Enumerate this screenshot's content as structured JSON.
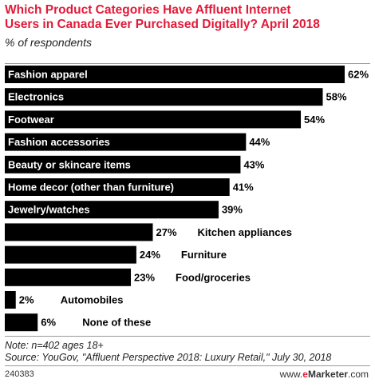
{
  "header": {
    "title": "Which Product Categories Have Affluent Internet\nUsers in Canada Ever Purchased Digitally? April 2018",
    "subtitle": "% of respondents"
  },
  "chart_data": {
    "type": "bar",
    "orientation": "horizontal",
    "title": "Which Product Categories Have Affluent Internet Users in Canada Ever Purchased Digitally? April 2018",
    "subtitle": "% of respondents",
    "categories": [
      "Fashion apparel",
      "Electronics",
      "Footwear",
      "Fashion accessories",
      "Beauty or skincare items",
      "Home decor (other than furniture)",
      "Jewelry/watches",
      "Kitchen appliances",
      "Furniture",
      "Food/groceries",
      "Automobiles",
      "None of these"
    ],
    "values": [
      62,
      58,
      54,
      44,
      43,
      41,
      39,
      27,
      24,
      23,
      2,
      6
    ],
    "value_labels": [
      "62%",
      "58%",
      "54%",
      "44%",
      "43%",
      "41%",
      "39%",
      "27%",
      "24%",
      "23%",
      "2%",
      "6%"
    ],
    "xlim": [
      0,
      62
    ],
    "grid": false,
    "bar_color": "#000000",
    "label_color_inside": "#ffffff",
    "label_color_outside": "#000000"
  },
  "footer": {
    "note": "Note: n=402 ages 18+",
    "source": "Source: YouGov, \"Affluent Perspective 2018: Luxury Retail,\" July 30, 2018",
    "chart_id": "240383",
    "brand_prefix": "www.",
    "brand_e": "e",
    "brand_name": "Marketer",
    "brand_suffix": ".com"
  }
}
